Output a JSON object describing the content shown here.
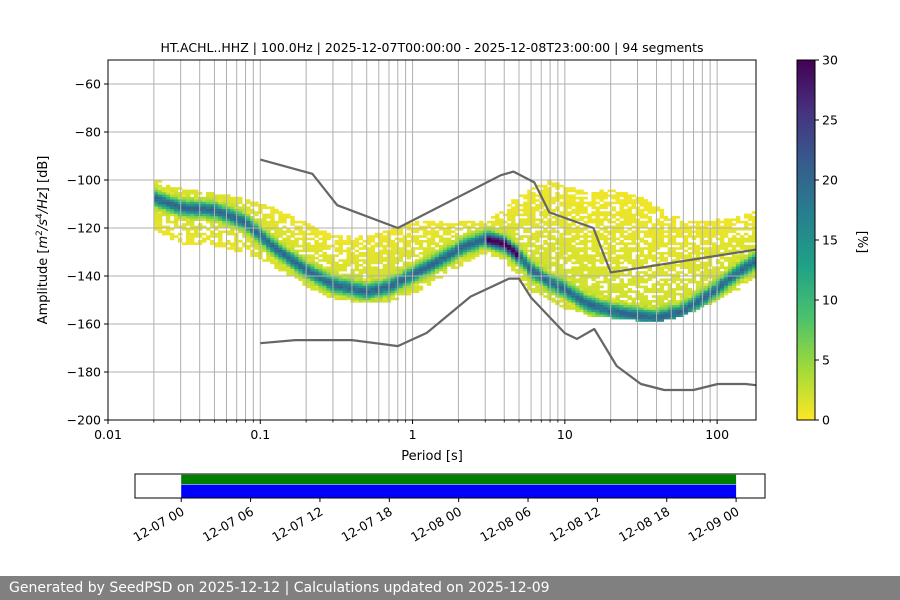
{
  "chart_data": [
    {
      "type": "heatmap",
      "title": "HT.ACHL..HHZ | 100.0Hz | 2025-12-07T00:00:00 - 2025-12-08T23:00:00 | 94 segments",
      "xlabel": "Period [s]",
      "ylabel_parts": [
        "Amplitude [",
        "m",
        "2",
        "/",
        "s",
        "4",
        "/",
        "Hz",
        "] [dB]"
      ],
      "x_scale": "log",
      "xlim": [
        0.01,
        180
      ],
      "ylim": [
        -200,
        -50
      ],
      "x_ticks": [
        0.01,
        0.1,
        1,
        10,
        100
      ],
      "x_tick_labels": [
        "0.01",
        "0.1",
        "1",
        "10",
        "100"
      ],
      "y_ticks": [
        -200,
        -180,
        -160,
        -140,
        -120,
        -100,
        -80,
        -60
      ],
      "y_tick_labels": [
        "−200",
        "−180",
        "−160",
        "−140",
        "−120",
        "−100",
        "−80",
        "−60"
      ],
      "grid": "x-minor-and-major",
      "colormap": "viridis_r",
      "colorbar": {
        "label": "[%]",
        "range": [
          0,
          30
        ],
        "ticks": [
          0,
          5,
          10,
          15,
          20,
          25,
          30
        ],
        "tick_labels": [
          "0",
          "5",
          "10",
          "15",
          "20",
          "25",
          "30"
        ],
        "stops": [
          "#fde725",
          "#a0da39",
          "#4ac16d",
          "#1fa187",
          "#277f8e",
          "#365c8d",
          "#46327e",
          "#440154"
        ]
      },
      "mode_curve": {
        "x": [
          0.02,
          0.03,
          0.05,
          0.08,
          0.12,
          0.2,
          0.3,
          0.5,
          0.7,
          1.0,
          1.5,
          2.2,
          3.0,
          4.0,
          5.0,
          6.0,
          8.0,
          10.0,
          14.0,
          20.0,
          30.0,
          40.0,
          60.0,
          90.0,
          130.0,
          180.0
        ],
        "y": [
          -108,
          -112,
          -113,
          -118,
          -128,
          -138,
          -144,
          -147,
          -145,
          -140,
          -134,
          -128,
          -125,
          -127,
          -132,
          -138,
          -143,
          -146,
          -152,
          -155,
          -157,
          -158,
          -155,
          -148,
          -140,
          -134
        ]
      },
      "band": {
        "x": [
          0.02,
          0.03,
          0.05,
          0.08,
          0.12,
          0.2,
          0.3,
          0.5,
          0.7,
          1.0,
          1.5,
          2.2,
          3.0,
          4.0,
          5.0,
          6.0,
          8.0,
          10.0,
          14.0,
          20.0,
          30.0,
          40.0,
          60.0,
          90.0,
          130.0,
          180.0
        ],
        "upper": [
          -100,
          -104,
          -106,
          -108,
          -112,
          -118,
          -122,
          -120,
          -118,
          -118,
          -118,
          -118,
          -117,
          -113,
          -106,
          -100,
          -93,
          -95,
          -92,
          -88,
          -90,
          -96,
          -105,
          -110,
          -114,
          -113
        ],
        "lower": [
          -121,
          -127,
          -128,
          -131,
          -136,
          -145,
          -150,
          -152,
          -151,
          -148,
          -142,
          -135,
          -131,
          -134,
          -141,
          -147,
          -151,
          -154,
          -157,
          -158,
          -159,
          -160,
          -157,
          -152,
          -147,
          -141
        ]
      },
      "nhnm": {
        "x": [
          0.1,
          0.22,
          0.32,
          0.8,
          3.8,
          4.6,
          6.3,
          7.9,
          15.4,
          20,
          180
        ],
        "y": [
          -91.5,
          -97.4,
          -110.5,
          -120,
          -98,
          -96.5,
          -101,
          -113.5,
          -120,
          -138.5,
          -129
        ]
      },
      "nlnm": {
        "x": [
          0.1,
          0.17,
          0.4,
          0.8,
          1.24,
          2.4,
          4.3,
          5.0,
          6.0,
          10.0,
          12.0,
          15.6,
          21.9,
          31.6,
          45,
          70,
          101,
          154,
          180
        ],
        "y": [
          -168,
          -166.7,
          -166.7,
          -169.2,
          -163.7,
          -148.6,
          -141.1,
          -141.1,
          -149,
          -163.8,
          -166.2,
          -162.1,
          -177.5,
          -185,
          -187.5,
          -187.5,
          -185,
          -185,
          -185.5
        ]
      }
    },
    {
      "type": "timeline",
      "start": "2025-12-07 00:00",
      "end": "2025-12-09 00:00",
      "xlim": [
        "2025-12-06 20:00",
        "2025-12-09 02:30"
      ],
      "x_ticks_hours": [
        0,
        6,
        12,
        18,
        24,
        30,
        36,
        42,
        48
      ],
      "x_tick_labels": [
        "12-07 00",
        "12-07 06",
        "12-07 12",
        "12-07 18",
        "12-08 00",
        "12-08 06",
        "12-08 12",
        "12-08 18",
        "12-09 00"
      ],
      "rows": [
        {
          "color": "#008000",
          "start_hours": 0,
          "end_hours": 48
        },
        {
          "color": "#0000ff",
          "start_hours": 0,
          "end_hours": 48
        }
      ]
    }
  ],
  "footer": {
    "text": "Generated by SeedPSD on 2025-12-12 | Calculations updated on 2025-12-09"
  }
}
